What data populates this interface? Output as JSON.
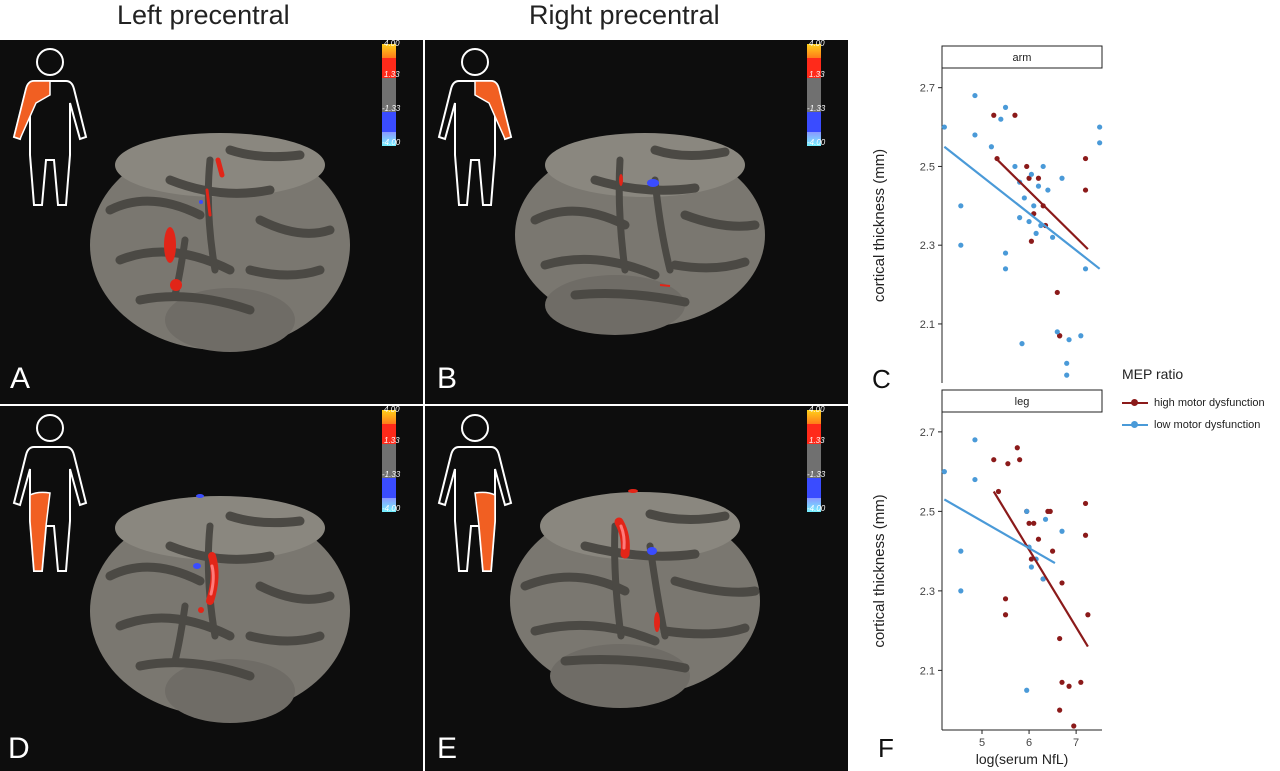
{
  "titles": {
    "left": "Left precentral",
    "right": "Right precentral"
  },
  "colorbar": {
    "ticks": [
      "4.00",
      "1.33",
      "-1.33",
      "-4.00"
    ],
    "colors": {
      "pos_high": "#ffd21a",
      "pos": "#ff2a1a",
      "neutral": "#707070",
      "neg": "#3a4cff",
      "neg_low": "#74f2ff"
    }
  },
  "panels": [
    {
      "letter": "A",
      "hemisphere": "left",
      "body_part": "arm"
    },
    {
      "letter": "B",
      "hemisphere": "right",
      "body_part": "arm"
    },
    {
      "letter": "D",
      "hemisphere": "left",
      "body_part": "leg"
    },
    {
      "letter": "E",
      "hemisphere": "right",
      "body_part": "leg"
    }
  ],
  "chart_data": [
    {
      "type": "scatter",
      "panel_label": "C",
      "facet": "arm",
      "xlabel": "",
      "ylabel": "cortical thickness (mm)",
      "xlim": [
        4.15,
        7.55
      ],
      "ylim": [
        1.95,
        2.75
      ],
      "xticks": [],
      "yticks": [
        2.1,
        2.3,
        2.5,
        2.7
      ],
      "series": [
        {
          "name": "high motor dysfunction",
          "color": "#8b1a1a",
          "x": [
            5.25,
            5.7,
            5.32,
            5.95,
            6.0,
            6.1,
            6.2,
            6.35,
            6.05,
            6.3,
            6.6,
            7.2,
            7.2,
            6.65,
            6.65
          ],
          "y": [
            2.63,
            2.63,
            2.52,
            2.5,
            2.47,
            2.38,
            2.47,
            2.35,
            2.31,
            2.4,
            2.18,
            2.52,
            2.44,
            2.07,
            2.07
          ],
          "fit": [
            [
              5.3,
              2.52
            ],
            [
              7.25,
              2.29
            ]
          ]
        },
        {
          "name": "low motor dysfunction",
          "color": "#4a9ad8",
          "x": [
            4.2,
            4.55,
            4.55,
            4.85,
            4.85,
            5.2,
            5.4,
            5.5,
            5.7,
            5.8,
            5.9,
            6.05,
            6.1,
            6.2,
            6.3,
            6.4,
            6.5,
            5.8,
            6.0,
            6.15,
            5.5,
            5.5,
            5.85,
            6.25,
            6.7,
            6.6,
            6.85,
            7.1,
            7.2,
            6.8,
            6.8,
            7.5,
            7.5
          ],
          "y": [
            2.6,
            2.4,
            2.3,
            2.68,
            2.58,
            2.55,
            2.62,
            2.65,
            2.5,
            2.46,
            2.42,
            2.48,
            2.4,
            2.45,
            2.5,
            2.44,
            2.32,
            2.37,
            2.36,
            2.33,
            2.28,
            2.24,
            2.05,
            2.35,
            2.47,
            2.08,
            2.06,
            2.07,
            2.24,
            2.0,
            1.97,
            2.6,
            2.56
          ],
          "fit": [
            [
              4.2,
              2.55
            ],
            [
              7.5,
              2.24
            ]
          ]
        }
      ]
    },
    {
      "type": "scatter",
      "panel_label": "F",
      "facet": "leg",
      "xlabel": "log(serum NfL)",
      "ylabel": "cortical thickness (mm)",
      "xlim": [
        4.15,
        7.55
      ],
      "ylim": [
        1.95,
        2.75
      ],
      "xticks": [
        5,
        6,
        7
      ],
      "yticks": [
        2.1,
        2.3,
        2.5,
        2.7
      ],
      "series": [
        {
          "name": "high motor dysfunction",
          "color": "#8b1a1a",
          "x": [
            5.25,
            5.35,
            5.55,
            5.75,
            5.8,
            5.95,
            6.0,
            6.1,
            6.05,
            6.2,
            6.4,
            6.45,
            6.5,
            6.3,
            5.5,
            5.5,
            6.7,
            6.65,
            6.7,
            6.85,
            6.95,
            7.1,
            7.2,
            7.2,
            7.25,
            6.65
          ],
          "y": [
            2.63,
            2.55,
            2.62,
            2.66,
            2.63,
            2.5,
            2.47,
            2.47,
            2.38,
            2.43,
            2.5,
            2.5,
            2.4,
            2.33,
            2.28,
            2.24,
            2.32,
            2.18,
            2.07,
            2.06,
            1.96,
            2.07,
            2.52,
            2.44,
            2.24,
            2.0
          ],
          "fit": [
            [
              5.25,
              2.55
            ],
            [
              7.25,
              2.16
            ]
          ]
        },
        {
          "name": "low motor dysfunction",
          "color": "#4a9ad8",
          "x": [
            4.2,
            4.55,
            4.55,
            4.85,
            4.85,
            5.95,
            6.0,
            6.05,
            6.15,
            6.3,
            6.35,
            6.7,
            5.95
          ],
          "y": [
            2.6,
            2.4,
            2.3,
            2.68,
            2.58,
            2.5,
            2.41,
            2.36,
            2.38,
            2.33,
            2.48,
            2.45,
            2.05
          ],
          "fit": [
            [
              4.2,
              2.53
            ],
            [
              6.55,
              2.37
            ]
          ]
        }
      ]
    }
  ],
  "legend": {
    "title": "MEP ratio",
    "items": [
      {
        "label": "high motor dysfunction",
        "color": "#8b1a1a"
      },
      {
        "label": "low motor dysfunction",
        "color": "#4a9ad8"
      }
    ]
  }
}
